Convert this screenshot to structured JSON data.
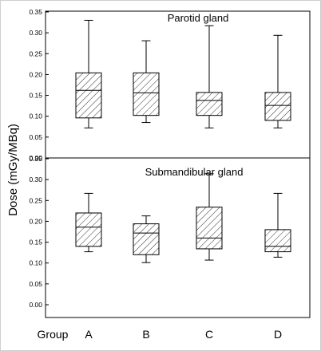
{
  "chart_data": {
    "type": "boxplot",
    "ylabel": "Dose (mGy/MBq)",
    "x_axis_caption": "Group",
    "categories": [
      "A",
      "B",
      "C",
      "D"
    ],
    "ylim": [
      0,
      0.35
    ],
    "yticks": [
      "0.00",
      "0.05",
      "0.10",
      "0.15",
      "0.20",
      "0.25",
      "0.30",
      "0.35"
    ],
    "panels": [
      {
        "title": "Parotid  gland",
        "boxes": [
          {
            "category": "A",
            "min": 0.072,
            "q1": 0.096,
            "median": 0.162,
            "q3": 0.204,
            "max": 0.33
          },
          {
            "category": "B",
            "min": 0.085,
            "q1": 0.102,
            "median": 0.156,
            "q3": 0.204,
            "max": 0.281
          },
          {
            "category": "C",
            "min": 0.072,
            "q1": 0.102,
            "median": 0.138,
            "q3": 0.157,
            "max": 0.317
          },
          {
            "category": "D",
            "min": 0.072,
            "q1": 0.09,
            "median": 0.126,
            "q3": 0.157,
            "max": 0.294
          }
        ]
      },
      {
        "title": "Submandibular gland",
        "boxes": [
          {
            "category": "A",
            "min": 0.127,
            "q1": 0.14,
            "median": 0.186,
            "q3": 0.22,
            "max": 0.267
          },
          {
            "category": "B",
            "min": 0.101,
            "q1": 0.12,
            "median": 0.172,
            "q3": 0.194,
            "max": 0.213
          },
          {
            "category": "C",
            "min": 0.107,
            "q1": 0.134,
            "median": 0.16,
            "q3": 0.234,
            "max": 0.314
          },
          {
            "category": "D",
            "min": 0.114,
            "q1": 0.127,
            "median": 0.14,
            "q3": 0.18,
            "max": 0.267
          }
        ]
      }
    ],
    "box_fill": "hatched",
    "colors": {
      "stroke": "#000000",
      "frame": "#cfcfcf",
      "background": "#ffffff"
    }
  }
}
